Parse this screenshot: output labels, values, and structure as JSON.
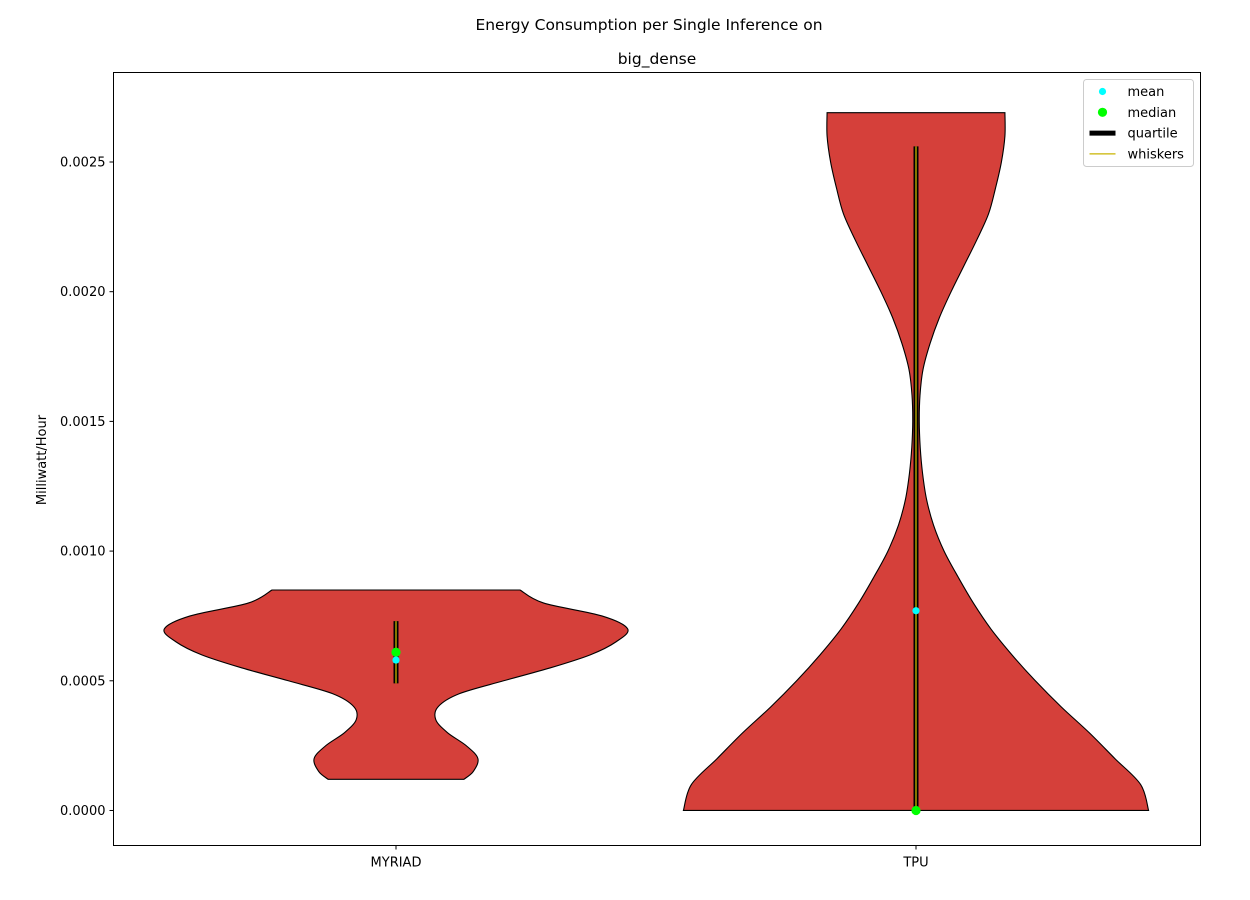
{
  "chart_data": {
    "type": "violin",
    "title_line1": "Energy Consumption per Single Inference on",
    "title_line2": "big_dense",
    "xlabel": "",
    "ylabel": "Milliwatt/Hour",
    "categories": [
      "MYRIAD",
      "TPU"
    ],
    "ylim": [
      -0.000135,
      0.002845
    ],
    "yticks": [
      0.0,
      0.0005,
      0.001,
      0.0015,
      0.002,
      0.0025
    ],
    "ytick_labels": [
      "0.0000",
      "0.0005",
      "0.0010",
      "0.0015",
      "0.0020",
      "0.0025"
    ],
    "grid": false,
    "legend_position": "top-right",
    "legend": [
      {
        "label": "mean",
        "kind": "dot",
        "color": "#00ffff"
      },
      {
        "label": "median",
        "kind": "dot",
        "color": "#00ff00"
      },
      {
        "label": "quartile",
        "kind": "thick-line",
        "color": "#000000"
      },
      {
        "label": "whiskers",
        "kind": "thin-line",
        "color": "#c8b400"
      }
    ],
    "violin_fill": "#d5403a",
    "violins": [
      {
        "category": "MYRIAD",
        "min": 0.00012,
        "max": 0.00085,
        "mean": 0.00058,
        "median": 0.00061,
        "q1": 0.00049,
        "q3": 0.00073,
        "whisker_low": 0.00049,
        "whisker_high": 0.00073,
        "profile": [
          [
            0.00012,
            0.29
          ],
          [
            0.00015,
            0.33
          ],
          [
            0.0002,
            0.35
          ],
          [
            0.00025,
            0.3
          ],
          [
            0.0003,
            0.22
          ],
          [
            0.00035,
            0.17
          ],
          [
            0.0004,
            0.18
          ],
          [
            0.00045,
            0.27
          ],
          [
            0.0005,
            0.46
          ],
          [
            0.00055,
            0.66
          ],
          [
            0.0006,
            0.83
          ],
          [
            0.00065,
            0.94
          ],
          [
            0.0007,
            0.99
          ],
          [
            0.00075,
            0.88
          ],
          [
            0.0008,
            0.63
          ],
          [
            0.00085,
            0.53
          ]
        ]
      },
      {
        "category": "TPU",
        "min": 0.0,
        "max": 0.00269,
        "mean": 0.00077,
        "median": 0.0,
        "q1": 0.0,
        "q3": 0.00256,
        "whisker_low": 0.0,
        "whisker_high": 0.00256,
        "profile": [
          [
            0.0,
            0.994
          ],
          [
            0.0001,
            0.96
          ],
          [
            0.0002,
            0.85
          ],
          [
            0.0003,
            0.74
          ],
          [
            0.0004,
            0.62
          ],
          [
            0.0005,
            0.51
          ],
          [
            0.0006,
            0.41
          ],
          [
            0.0007,
            0.32
          ],
          [
            0.0008,
            0.245
          ],
          [
            0.0009,
            0.18
          ],
          [
            0.001,
            0.12
          ],
          [
            0.0011,
            0.075
          ],
          [
            0.0012,
            0.045
          ],
          [
            0.0013,
            0.028
          ],
          [
            0.0014,
            0.018
          ],
          [
            0.0015,
            0.014
          ],
          [
            0.0016,
            0.017
          ],
          [
            0.0017,
            0.03
          ],
          [
            0.0018,
            0.06
          ],
          [
            0.0019,
            0.1
          ],
          [
            0.002,
            0.15
          ],
          [
            0.0021,
            0.205
          ],
          [
            0.0022,
            0.26
          ],
          [
            0.0023,
            0.31
          ],
          [
            0.0024,
            0.34
          ],
          [
            0.0025,
            0.365
          ],
          [
            0.0026,
            0.38
          ],
          [
            0.00269,
            0.38
          ]
        ]
      }
    ]
  }
}
